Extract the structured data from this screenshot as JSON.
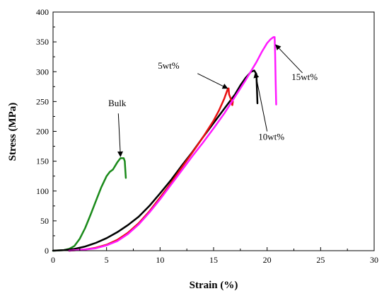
{
  "chart_data": {
    "type": "line",
    "title": "",
    "xlabel": "Strain (%)",
    "ylabel": "Stress (MPa)",
    "xlim": [
      0,
      30
    ],
    "ylim": [
      0,
      400
    ],
    "xticks": [
      0,
      5,
      10,
      15,
      20,
      25,
      30
    ],
    "yticks": [
      0,
      50,
      100,
      150,
      200,
      250,
      300,
      350,
      400
    ],
    "grid": false,
    "legend": "none",
    "series": [
      {
        "color": "#1a8a1a",
        "points": [
          [
            0,
            0
          ],
          [
            1,
            1
          ],
          [
            1.5,
            3
          ],
          [
            2,
            8
          ],
          [
            2.5,
            20
          ],
          [
            3,
            38
          ],
          [
            3.5,
            60
          ],
          [
            4,
            83
          ],
          [
            4.5,
            106
          ],
          [
            5,
            125
          ],
          [
            5.3,
            132
          ],
          [
            5.6,
            136
          ],
          [
            6,
            148
          ],
          [
            6.3,
            155
          ],
          [
            6.6,
            155
          ],
          [
            6.7,
            150
          ],
          [
            6.75,
            135
          ],
          [
            6.8,
            122
          ]
        ]
      },
      {
        "color": "#000000",
        "points": [
          [
            0,
            0
          ],
          [
            1,
            1
          ],
          [
            2,
            3
          ],
          [
            3,
            7
          ],
          [
            4,
            13
          ],
          [
            5,
            21
          ],
          [
            6,
            31
          ],
          [
            7,
            43
          ],
          [
            8,
            57
          ],
          [
            9,
            75
          ],
          [
            10,
            96
          ],
          [
            11,
            118
          ],
          [
            12,
            142
          ],
          [
            13,
            165
          ],
          [
            14,
            190
          ],
          [
            15,
            214
          ],
          [
            16,
            238
          ],
          [
            17,
            262
          ],
          [
            17.5,
            277
          ],
          [
            18,
            290
          ],
          [
            18.5,
            300
          ],
          [
            18.8,
            302
          ],
          [
            19,
            296
          ],
          [
            19.05,
            270
          ],
          [
            19.1,
            247
          ]
        ]
      },
      {
        "color": "#e81010",
        "points": [
          [
            1.5,
            0
          ],
          [
            3,
            2
          ],
          [
            4,
            5
          ],
          [
            5,
            10
          ],
          [
            6,
            18
          ],
          [
            7,
            30
          ],
          [
            8,
            46
          ],
          [
            9,
            66
          ],
          [
            10,
            89
          ],
          [
            11,
            113
          ],
          [
            12,
            139
          ],
          [
            13,
            164
          ],
          [
            14,
            190
          ],
          [
            15,
            218
          ],
          [
            15.5,
            235
          ],
          [
            16,
            255
          ],
          [
            16.3,
            270
          ],
          [
            16.4,
            272
          ],
          [
            16.45,
            262
          ],
          [
            16.6,
            255
          ],
          [
            16.7,
            248
          ],
          [
            16.75,
            244
          ],
          [
            16.8,
            250
          ]
        ]
      },
      {
        "color": "#ff1aff",
        "points": [
          [
            1.5,
            0
          ],
          [
            3,
            2
          ],
          [
            4,
            4
          ],
          [
            5,
            9
          ],
          [
            6,
            16
          ],
          [
            7,
            28
          ],
          [
            8,
            44
          ],
          [
            9,
            64
          ],
          [
            10,
            86
          ],
          [
            11,
            110
          ],
          [
            12,
            134
          ],
          [
            13,
            158
          ],
          [
            14,
            181
          ],
          [
            15,
            205
          ],
          [
            16,
            230
          ],
          [
            17,
            258
          ],
          [
            18,
            286
          ],
          [
            19,
            316
          ],
          [
            19.5,
            333
          ],
          [
            20,
            348
          ],
          [
            20.3,
            354
          ],
          [
            20.6,
            358
          ],
          [
            20.7,
            358
          ],
          [
            20.75,
            330
          ],
          [
            20.8,
            280
          ],
          [
            20.85,
            245
          ]
        ]
      }
    ],
    "annotations": [
      {
        "text": "Bulk",
        "text_at": [
          6.0,
          242
        ],
        "arrow_from": [
          6.1,
          230
        ],
        "arrow_to": [
          6.3,
          158
        ]
      },
      {
        "text": "5wt%",
        "text_at": [
          10.8,
          305
        ],
        "arrow_from": [
          13.5,
          297
        ],
        "arrow_to": [
          16.3,
          272
        ]
      },
      {
        "text": "10wt%",
        "text_at": [
          20.4,
          186
        ],
        "arrow_from": [
          20.0,
          200
        ],
        "arrow_to": [
          18.9,
          298
        ]
      },
      {
        "text": "15wt%",
        "text_at": [
          23.5,
          286
        ],
        "arrow_from": [
          23.3,
          298
        ],
        "arrow_to": [
          20.8,
          345
        ]
      }
    ]
  }
}
